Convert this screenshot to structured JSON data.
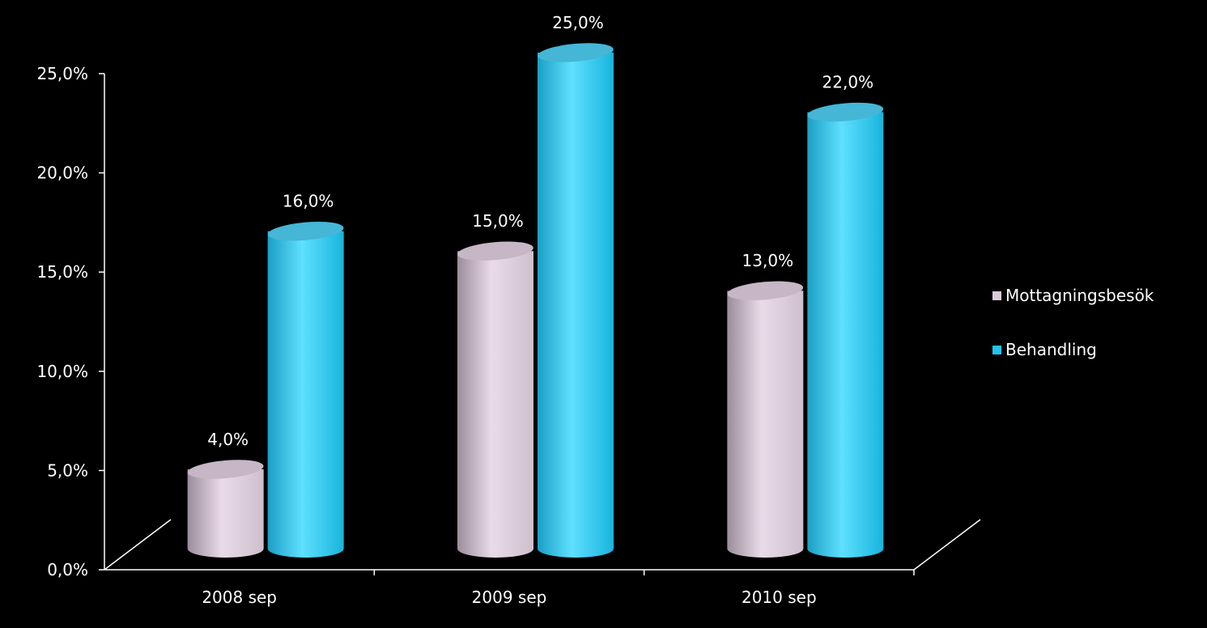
{
  "chart_data": {
    "type": "bar",
    "style": "3d-cylinder",
    "categories": [
      "2008 sep",
      "2009 sep",
      "2010 sep"
    ],
    "series": [
      {
        "name": "Mottagningsbesök",
        "values": [
          4.0,
          15.0,
          13.0
        ],
        "labels": [
          "4,0%",
          "15,0%",
          "13,0%"
        ],
        "color": "#e2d6e2"
      },
      {
        "name": "Behandling",
        "values": [
          16.0,
          25.0,
          22.0
        ],
        "labels": [
          "16,0%",
          "25,0%",
          "22,0%"
        ],
        "color": "#33ccf2"
      }
    ],
    "yticks": [
      "0,0%",
      "5,0%",
      "10,0%",
      "15,0%",
      "20,0%",
      "25,0%"
    ],
    "ylim": [
      0,
      25
    ],
    "grid": false,
    "legend": "right",
    "background": "#000000"
  }
}
